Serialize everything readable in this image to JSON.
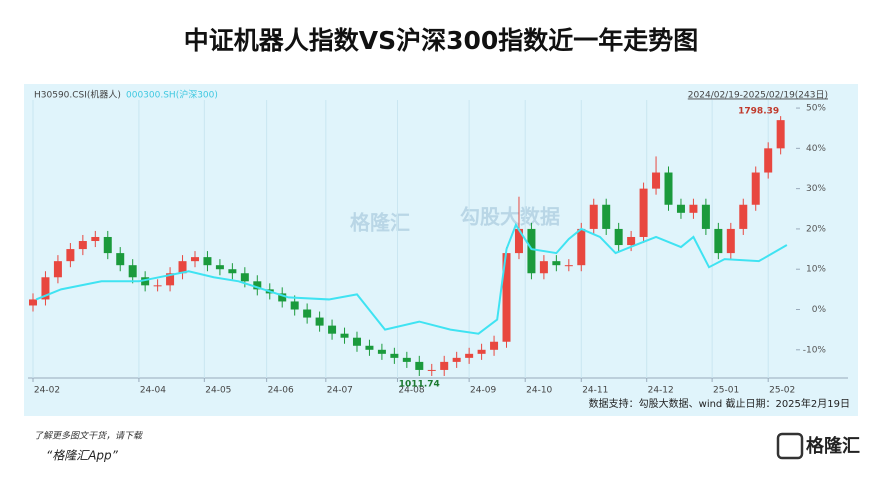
{
  "chart_data": {
    "type": "candlestick",
    "title": "中证机器人指数VS沪深300指数近一年走势图",
    "date_range": "2024/02/19-2025/02/19(243日)",
    "source": "数据支持：勾股大数据、wind    截止日期：2025年2月19日",
    "promo": [
      "了解更多图文干货，请下载",
      "“格隆汇App”"
    ],
    "logo": "格隆汇",
    "watermarks": [
      "格隆汇",
      "勾股大数据"
    ],
    "annotations": [
      {
        "text": "1798.39",
        "x": 240,
        "y": 48
      },
      {
        "text": "1011.74",
        "x": 124,
        "y": -16.5
      }
    ],
    "xlim": [
      0,
      243
    ],
    "xticks": [
      {
        "value": 0,
        "label": "24-02"
      },
      {
        "value": 34,
        "label": "24-04"
      },
      {
        "value": 55,
        "label": "24-05"
      },
      {
        "value": 75,
        "label": "24-06"
      },
      {
        "value": 94,
        "label": "24-07"
      },
      {
        "value": 117,
        "label": "24-08"
      },
      {
        "value": 140,
        "label": "24-09"
      },
      {
        "value": 158,
        "label": "24-10"
      },
      {
        "value": 176,
        "label": "24-11"
      },
      {
        "value": 197,
        "label": "24-12"
      },
      {
        "value": 218,
        "label": "25-01"
      },
      {
        "value": 236,
        "label": "25-02"
      }
    ],
    "ylim": [
      -17,
      52
    ],
    "yticks": [
      {
        "value": 50,
        "label": "50%"
      },
      {
        "value": 40,
        "label": "40%"
      },
      {
        "value": 30,
        "label": "30%"
      },
      {
        "value": 20,
        "label": "20%"
      },
      {
        "value": 10,
        "label": "10%"
      },
      {
        "value": 0,
        "label": "0%"
      },
      {
        "value": -10,
        "label": "-10%"
      }
    ],
    "grid": "x",
    "up_color": "#e8473f",
    "down_color": "#1b9a3c",
    "series": [
      {
        "name": "H30590.CSI(机器人)",
        "color": "#555555",
        "x": [
          0,
          4,
          8,
          12,
          16,
          20,
          24,
          28,
          32,
          36,
          40,
          44,
          48,
          52,
          56,
          60,
          64,
          68,
          72,
          76,
          80,
          84,
          88,
          92,
          96,
          100,
          104,
          108,
          112,
          116,
          120,
          124,
          128,
          132,
          136,
          140,
          144,
          148,
          152,
          156,
          160,
          164,
          168,
          172,
          176,
          180,
          184,
          188,
          192,
          196,
          200,
          204,
          208,
          212,
          216,
          220,
          224,
          228,
          232,
          236,
          240
        ],
        "open": [
          1,
          2.5,
          8,
          12,
          15,
          17,
          18,
          14,
          11,
          8,
          6,
          6,
          9,
          12,
          13,
          11,
          10,
          9,
          7,
          5,
          4,
          2,
          0,
          -2,
          -4,
          -6,
          -7,
          -9,
          -10,
          -11,
          -12,
          -13,
          -15,
          -15,
          -13,
          -12,
          -11,
          -10,
          -8,
          14,
          20,
          9,
          12,
          11,
          11,
          20,
          26,
          20,
          16,
          18,
          30,
          34,
          26,
          24,
          26,
          20,
          14,
          20,
          26,
          34,
          40
        ],
        "high": [
          4,
          9.5,
          13.5,
          16.5,
          18.5,
          19.5,
          19.5,
          15.5,
          12.5,
          9.5,
          7.5,
          10.5,
          13.5,
          14.5,
          14.5,
          12.5,
          11.5,
          10.5,
          8.5,
          6.5,
          5.5,
          3.5,
          1.5,
          -0.5,
          -2.5,
          -4.5,
          -5.5,
          -7.5,
          -8.5,
          -9.5,
          -10.5,
          -11.5,
          -13.5,
          -11.5,
          -10.5,
          -9.5,
          -8.5,
          -6.5,
          15.5,
          28,
          21.5,
          13.5,
          13.5,
          12.5,
          21.5,
          27.5,
          27.5,
          21.5,
          19.5,
          31.5,
          38,
          35.5,
          27.5,
          27.5,
          27.5,
          21.5,
          21.5,
          27.5,
          35.5,
          41.5,
          48
        ],
        "low": [
          -0.5,
          1,
          6.5,
          10.5,
          13.5,
          15.5,
          12.5,
          9.5,
          6.5,
          4.5,
          4.5,
          4.5,
          7.5,
          10.5,
          9.5,
          8.5,
          7.5,
          5.5,
          3.5,
          2.5,
          0.5,
          -1.5,
          -3.5,
          -5.5,
          -7.5,
          -8.5,
          -10.5,
          -11.5,
          -12.5,
          -13.5,
          -14.5,
          -16.5,
          -16.5,
          -16.5,
          -14.5,
          -13.5,
          -12.5,
          -11.5,
          -9.5,
          12.5,
          7.5,
          7.5,
          9.5,
          9.5,
          9.5,
          18.5,
          18.5,
          14.5,
          14.5,
          16.5,
          28.5,
          24.5,
          22.5,
          22.5,
          18.5,
          12.5,
          12.5,
          18.5,
          24.5,
          32.5,
          38.5
        ],
        "close": [
          2.5,
          8,
          12,
          15,
          17,
          18,
          14,
          11,
          8,
          6,
          6,
          9,
          12,
          13,
          11,
          10,
          9,
          7,
          5,
          4,
          2,
          0,
          -2,
          -4,
          -6,
          -7,
          -9,
          -10,
          -11,
          -12,
          -13,
          -15,
          -15,
          -13,
          -12,
          -11,
          -10,
          -8,
          14,
          20,
          9,
          12,
          11,
          11,
          20,
          26,
          20,
          16,
          18,
          30,
          34,
          26,
          24,
          26,
          20,
          14,
          20,
          26,
          34,
          40,
          47
        ]
      },
      {
        "name": "000300.SH(沪深300)",
        "color": "#3fe3f2",
        "type": "line",
        "x": [
          1,
          9,
          22,
          34,
          50,
          58,
          66,
          82,
          95,
          104,
          113,
          124,
          134,
          143,
          149,
          152,
          155,
          160,
          168,
          172,
          176,
          182,
          187,
          195,
          200,
          208,
          212,
          217,
          222,
          233,
          242
        ],
        "values": [
          2.5,
          5,
          7,
          7,
          9.5,
          8,
          7,
          3,
          2.5,
          3.75,
          -5,
          -3,
          -5,
          -6,
          -2.5,
          15,
          21,
          15,
          14,
          17.5,
          20,
          18,
          14,
          16.5,
          18,
          15.5,
          18,
          10.5,
          12.5,
          12,
          16
        ]
      }
    ]
  }
}
